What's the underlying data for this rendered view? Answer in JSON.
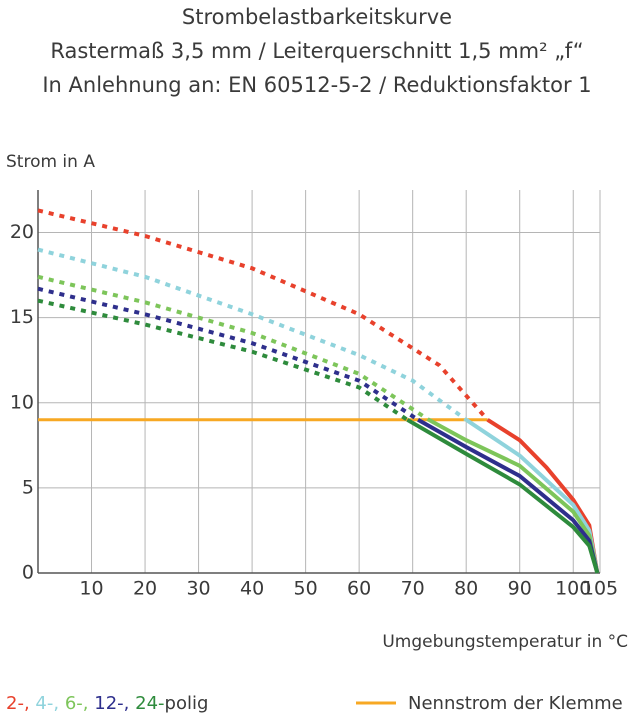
{
  "chart_data": {
    "type": "line",
    "title": [
      "Strombelastbarkeitskurve",
      "Rastermaß 3,5 mm / Leiterquerschnitt 1,5 mm² „f“",
      "In Anlehnung an: EN 60512-5-2 / Reduktionsfaktor 1"
    ],
    "y_label": "Strom in A",
    "x_label": "Umgebungstemperatur in °C",
    "xlim": [
      0,
      105
    ],
    "ylim": [
      0,
      22.5
    ],
    "xticks": [
      10,
      20,
      30,
      40,
      50,
      60,
      70,
      80,
      90,
      100,
      105
    ],
    "yticks": [
      0,
      5,
      10,
      15,
      20
    ],
    "grid": true,
    "series": [
      {
        "name": "2-",
        "color": "#e8412c",
        "x": [
          0,
          20,
          40,
          60,
          75,
          84,
          90,
          95,
          100,
          103,
          104.5
        ],
        "values": [
          21.3,
          19.8,
          17.9,
          15.2,
          12.2,
          9,
          7.8,
          6.2,
          4.3,
          2.8,
          0
        ]
      },
      {
        "name": "4-",
        "color": "#8fd3dc",
        "x": [
          0,
          20,
          40,
          60,
          70,
          80,
          90,
          100,
          103,
          104.5
        ],
        "values": [
          19,
          17.4,
          15.2,
          12.8,
          11.3,
          9,
          6.9,
          4,
          2.5,
          0
        ]
      },
      {
        "name": "6-",
        "color": "#7dc55a",
        "x": [
          0,
          20,
          40,
          60,
          73,
          80,
          90,
          100,
          103,
          104.5
        ],
        "values": [
          17.4,
          15.9,
          14.1,
          11.7,
          9,
          7.8,
          6.3,
          3.6,
          2.2,
          0
        ]
      },
      {
        "name": "12-",
        "color": "#2e2f8c",
        "x": [
          0,
          20,
          40,
          60,
          71,
          80,
          90,
          100,
          103,
          104.5
        ],
        "values": [
          16.7,
          15.2,
          13.5,
          11.3,
          9,
          7.4,
          5.7,
          3.1,
          1.9,
          0
        ]
      },
      {
        "name": "24-",
        "color": "#2e8b3c",
        "x": [
          0,
          20,
          40,
          60,
          69,
          80,
          90,
          100,
          103,
          104.5
        ],
        "values": [
          16,
          14.6,
          13,
          10.9,
          9,
          7,
          5.2,
          2.7,
          1.6,
          0
        ]
      }
    ],
    "legend_separator": ",",
    "legend_suffix": "polig",
    "reference_line": {
      "name": "Nennstrom der Klemme",
      "color": "#f7a823",
      "x": [
        0,
        84
      ],
      "values": [
        9,
        9
      ]
    }
  }
}
